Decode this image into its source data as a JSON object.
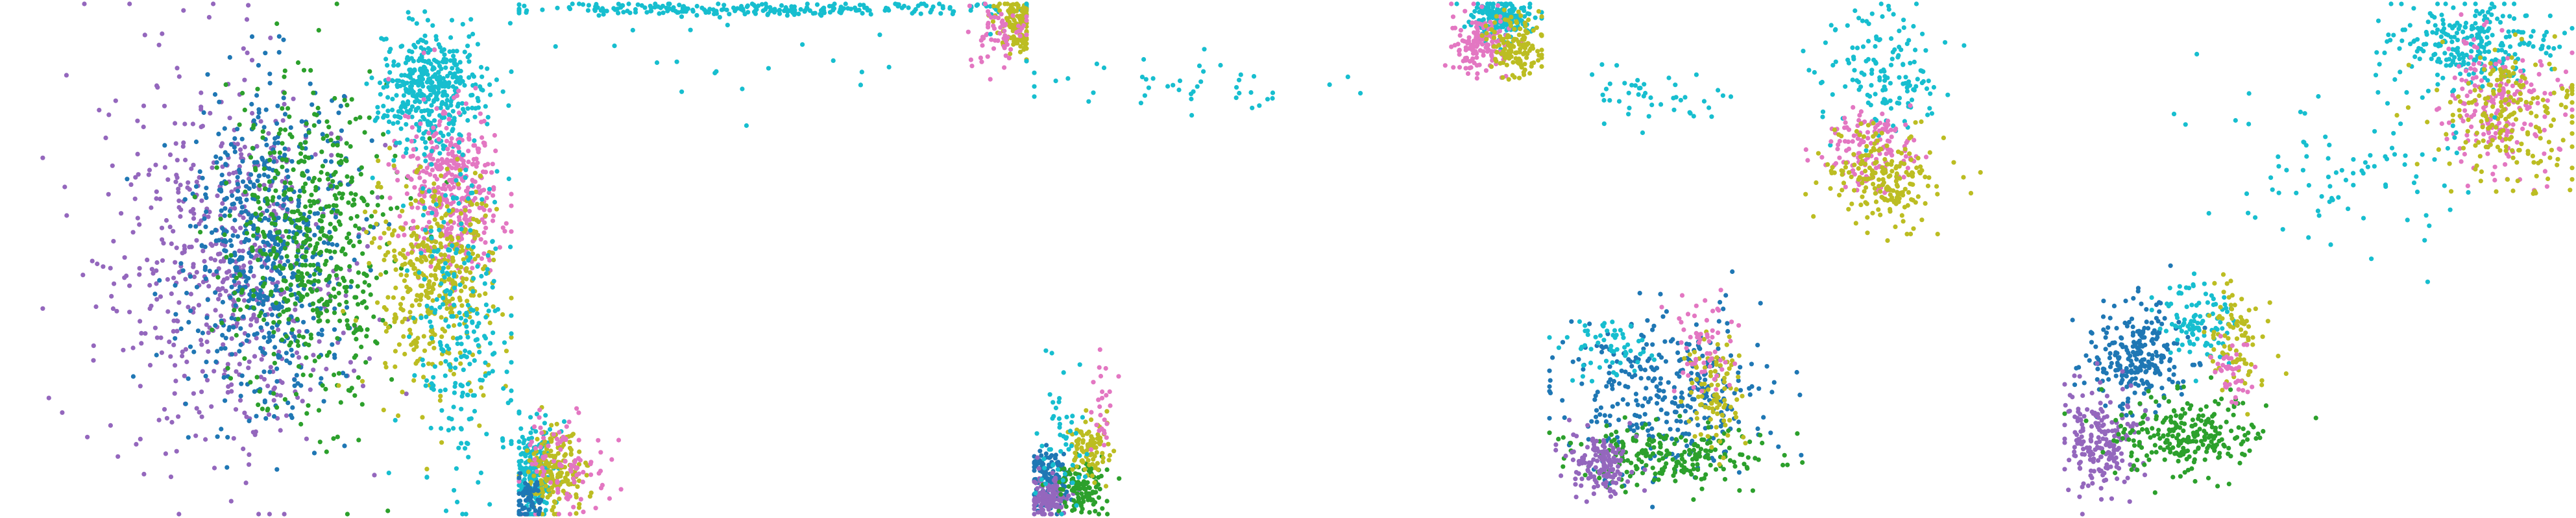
{
  "figure": {
    "title": "",
    "subtitle": ""
  },
  "style": {
    "background": "#ffffff",
    "colors": {
      "blue": "#1f77b4",
      "green": "#2ca02c",
      "purple": "#9467bd",
      "pink": "#e377c2",
      "olive": "#bcbd22",
      "cyan": "#17becf"
    }
  },
  "chart_data": [
    {
      "type": "scatter",
      "title": "",
      "xlabel": "",
      "ylabel": "",
      "axes": "off",
      "grid": false,
      "legend": "none",
      "xlim": [
        0,
        100
      ],
      "ylim": [
        0,
        100
      ],
      "clusters": [
        {
          "color": "purple",
          "cx": 44,
          "cy": 48,
          "sx": 12,
          "sy": 18,
          "n": 600
        },
        {
          "color": "blue",
          "cx": 52,
          "cy": 52,
          "sx": 8,
          "sy": 16,
          "n": 600
        },
        {
          "color": "green",
          "cx": 60,
          "cy": 54,
          "sx": 8,
          "sy": 16,
          "n": 550
        },
        {
          "color": "cyan",
          "cx": 84,
          "cy": 84,
          "sx": 5,
          "sy": 6,
          "n": 420
        },
        {
          "color": "pink",
          "cx": 88,
          "cy": 64,
          "sx": 5,
          "sy": 8,
          "n": 400
        },
        {
          "color": "olive",
          "cx": 85,
          "cy": 46,
          "sx": 6,
          "sy": 11,
          "n": 420
        },
        {
          "color": "cyan",
          "cx": 90,
          "cy": 40,
          "sx": 5,
          "sy": 18,
          "n": 250
        }
      ]
    },
    {
      "type": "scatter",
      "title": "",
      "xlabel": "",
      "ylabel": "",
      "axes": "off",
      "grid": false,
      "legend": "none",
      "xlim": [
        0,
        100
      ],
      "ylim": [
        0,
        100
      ],
      "clusters": [
        {
          "color": "cyan",
          "cx": 3,
          "cy": 8,
          "sx": 2,
          "sy": 5,
          "n": 200
        },
        {
          "color": "olive",
          "cx": 7,
          "cy": 8,
          "sx": 3,
          "sy": 4,
          "n": 180
        },
        {
          "color": "pink",
          "cx": 9,
          "cy": 10,
          "sx": 4,
          "sy": 5,
          "n": 90
        },
        {
          "color": "blue",
          "cx": 2,
          "cy": 3,
          "sx": 1.5,
          "sy": 2,
          "n": 60
        },
        {
          "color": "cyan",
          "cx": 48,
          "cy": 99,
          "sx": 28,
          "sy": 0.6,
          "n": 260
        },
        {
          "color": "olive",
          "cx": 98,
          "cy": 96,
          "sx": 2,
          "sy": 3,
          "n": 120
        },
        {
          "color": "pink",
          "cx": 95,
          "cy": 94,
          "sx": 3,
          "sy": 3,
          "n": 60
        },
        {
          "color": "cyan",
          "cx": 40,
          "cy": 90,
          "sx": 30,
          "sy": 8,
          "n": 25
        }
      ]
    },
    {
      "type": "scatter",
      "title": "",
      "xlabel": "",
      "ylabel": "",
      "axes": "off",
      "grid": false,
      "legend": "none",
      "xlim": [
        0,
        100
      ],
      "ylim": [
        0,
        100
      ],
      "clusters": [
        {
          "color": "blue",
          "cx": 3,
          "cy": 7,
          "sx": 2,
          "sy": 3,
          "n": 120
        },
        {
          "color": "purple",
          "cx": 3,
          "cy": 3,
          "sx": 2,
          "sy": 2,
          "n": 120
        },
        {
          "color": "green",
          "cx": 9,
          "cy": 5,
          "sx": 2.5,
          "sy": 3,
          "n": 120
        },
        {
          "color": "olive",
          "cx": 11,
          "cy": 13,
          "sx": 2,
          "sy": 3,
          "n": 90
        },
        {
          "color": "cyan",
          "cx": 5,
          "cy": 14,
          "sx": 2.5,
          "sy": 7,
          "n": 50
        },
        {
          "color": "pink",
          "cx": 14,
          "cy": 22,
          "sx": 2,
          "sy": 5,
          "n": 25
        },
        {
          "color": "cyan",
          "cx": 30,
          "cy": 84,
          "sx": 16,
          "sy": 3,
          "n": 45
        },
        {
          "color": "cyan",
          "cx": 92,
          "cy": 97,
          "sx": 3,
          "sy": 2,
          "n": 200
        },
        {
          "color": "pink",
          "cx": 88,
          "cy": 92,
          "sx": 3,
          "sy": 3,
          "n": 140
        },
        {
          "color": "olive",
          "cx": 95,
          "cy": 92,
          "sx": 3,
          "sy": 3,
          "n": 140
        }
      ]
    },
    {
      "type": "scatter",
      "title": "",
      "xlabel": "",
      "ylabel": "",
      "axes": "off",
      "grid": false,
      "legend": "none",
      "xlim": [
        0,
        100
      ],
      "ylim": [
        0,
        100
      ],
      "clusters": [
        {
          "color": "cyan",
          "cx": 20,
          "cy": 82,
          "sx": 8,
          "sy": 3,
          "n": 45
        },
        {
          "color": "cyan",
          "cx": 66,
          "cy": 86,
          "sx": 6,
          "sy": 6,
          "n": 150
        },
        {
          "color": "pink",
          "cx": 64,
          "cy": 71,
          "sx": 5,
          "sy": 4,
          "n": 150
        },
        {
          "color": "olive",
          "cx": 66,
          "cy": 66,
          "sx": 5,
          "sy": 5,
          "n": 200
        },
        {
          "color": "blue",
          "cx": 23,
          "cy": 24,
          "sx": 10,
          "sy": 8,
          "n": 350
        },
        {
          "color": "green",
          "cx": 24,
          "cy": 11,
          "sx": 10,
          "sy": 3,
          "n": 220
        },
        {
          "color": "purple",
          "cx": 10,
          "cy": 10,
          "sx": 3,
          "sy": 3,
          "n": 140
        },
        {
          "color": "cyan",
          "cx": 12,
          "cy": 33,
          "sx": 4,
          "sy": 3,
          "n": 60
        },
        {
          "color": "olive",
          "cx": 32,
          "cy": 24,
          "sx": 3,
          "sy": 6,
          "n": 100
        },
        {
          "color": "pink",
          "cx": 30,
          "cy": 33,
          "sx": 3,
          "sy": 5,
          "n": 60
        }
      ]
    },
    {
      "type": "scatter",
      "title": "",
      "xlabel": "",
      "ylabel": "",
      "axes": "off",
      "grid": false,
      "legend": "none",
      "xlim": [
        0,
        100
      ],
      "ylim": [
        0,
        100
      ],
      "clusters": [
        {
          "color": "cyan",
          "cx": 80,
          "cy": 92,
          "sx": 8,
          "sy": 4,
          "n": 260
        },
        {
          "color": "pink",
          "cx": 86,
          "cy": 80,
          "sx": 6,
          "sy": 6,
          "n": 200
        },
        {
          "color": "olive",
          "cx": 88,
          "cy": 78,
          "sx": 7,
          "sy": 7,
          "n": 200
        },
        {
          "color": "cyan",
          "cx": 55,
          "cy": 66,
          "sx": 12,
          "sy": 8,
          "n": 90
        },
        {
          "color": "blue",
          "cx": 14,
          "cy": 31,
          "sx": 5,
          "sy": 5,
          "n": 250
        },
        {
          "color": "purple",
          "cx": 8,
          "cy": 14,
          "sx": 4,
          "sy": 5,
          "n": 200
        },
        {
          "color": "green",
          "cx": 24,
          "cy": 16,
          "sx": 7,
          "sy": 4,
          "n": 250
        },
        {
          "color": "cyan",
          "cx": 26,
          "cy": 38,
          "sx": 4,
          "sy": 4,
          "n": 100
        },
        {
          "color": "olive",
          "cx": 34,
          "cy": 34,
          "sx": 3,
          "sy": 5,
          "n": 90
        },
        {
          "color": "pink",
          "cx": 33,
          "cy": 28,
          "sx": 2,
          "sy": 3,
          "n": 40
        }
      ]
    }
  ]
}
